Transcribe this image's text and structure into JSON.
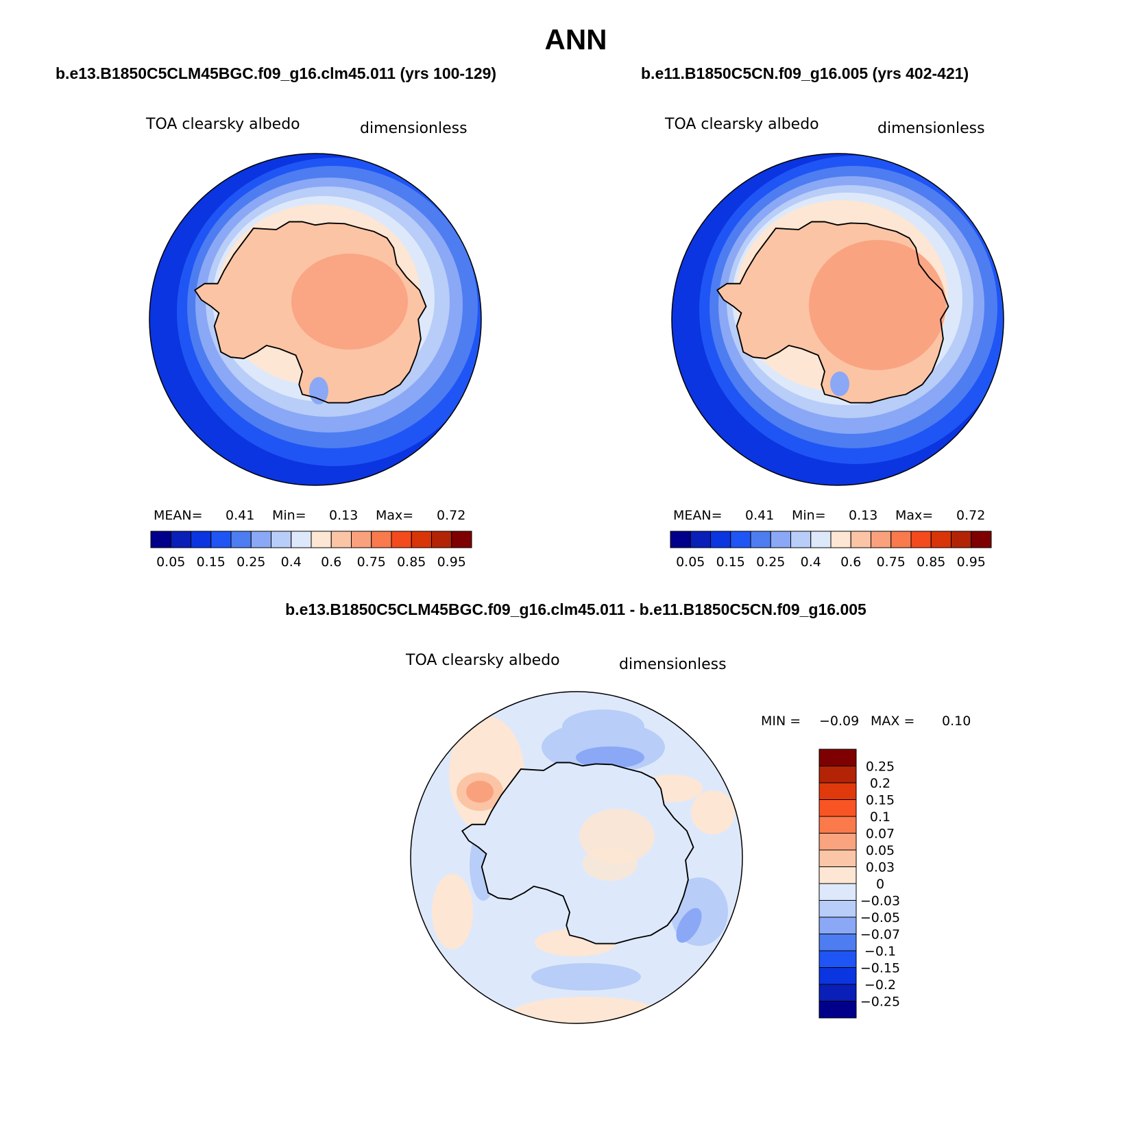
{
  "page_title": "ANN",
  "panels": {
    "left": {
      "case_title": "b.e13.B1850C5CLM45BGC.f09_g16.clm45.011 (yrs 100-129)",
      "variable": "TOA clearsky albedo",
      "units": "dimensionless",
      "stats": {
        "mean_label": "MEAN=",
        "mean": "0.41",
        "min_label": "Min=",
        "min": "0.13",
        "max_label": "Max=",
        "max": "0.72"
      }
    },
    "right": {
      "case_title": "b.e11.B1850C5CN.f09_g16.005 (yrs 402-421)",
      "variable": "TOA clearsky albedo",
      "units": "dimensionless",
      "stats": {
        "mean_label": "MEAN=",
        "mean": "0.41",
        "min_label": "Min=",
        "min": "0.13",
        "max_label": "Max=",
        "max": "0.72"
      }
    },
    "diff": {
      "case_title": "b.e13.B1850C5CLM45BGC.f09_g16.clm45.011 - b.e11.B1850C5CN.f09_g16.005",
      "variable": "TOA clearsky albedo",
      "units": "dimensionless",
      "stats": {
        "min_label": "MIN =",
        "min": "−0.09",
        "max_label": "MAX =",
        "max": "0.10"
      }
    }
  },
  "colorbars": {
    "abs": {
      "colors": [
        "#00008b",
        "#0a1fb8",
        "#0b35e0",
        "#1f55f5",
        "#4d7df0",
        "#8aa8f5",
        "#b8cdf7",
        "#dde9fb",
        "#fde6d3",
        "#fbc4a5",
        "#f9a07d",
        "#f97a4c",
        "#f34b1d",
        "#d83509",
        "#b32305",
        "#7e0000"
      ],
      "labels": [
        "0.05",
        "0.15",
        "0.25",
        "0.4",
        "0.6",
        "0.75",
        "0.85",
        "0.95"
      ],
      "label_after_box": [
        1,
        3,
        5,
        7,
        9,
        11,
        13,
        15
      ]
    },
    "diff": {
      "colors": [
        "#7e0000",
        "#b32305",
        "#e03a0c",
        "#f95524",
        "#fb7a4b",
        "#f9a37f",
        "#fbc6a8",
        "#fde6d3",
        "#dde9fb",
        "#b8cdf7",
        "#8aa8f5",
        "#4d7df0",
        "#1f55f5",
        "#0b35e0",
        "#0a1fb8",
        "#00008b"
      ],
      "labels": [
        "0.25",
        "0.2",
        "0.15",
        "0.1",
        "0.07",
        "0.05",
        "0.03",
        "0",
        "−0.03",
        "−0.05",
        "−0.07",
        "−0.1",
        "−0.15",
        "−0.2",
        "−0.25"
      ]
    }
  }
}
